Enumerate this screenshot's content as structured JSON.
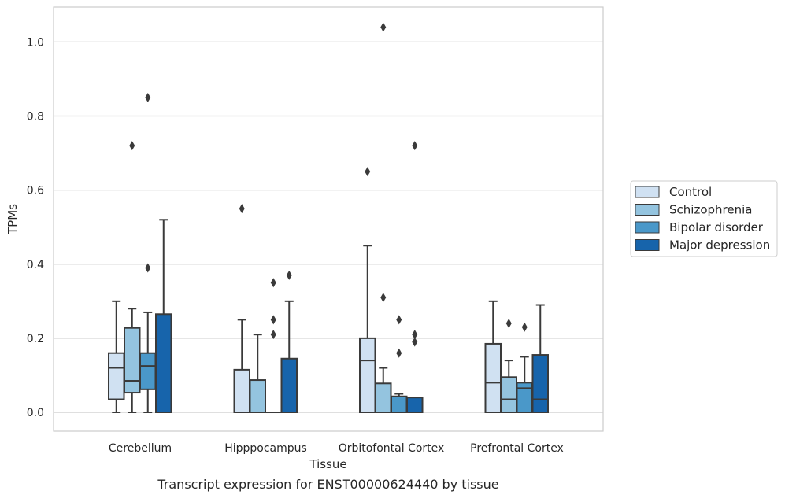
{
  "caption": "Transcript expression for ENST00000624440 by tissue",
  "chart_data": {
    "type": "box",
    "title": "",
    "xlabel": "Tissue",
    "ylabel": "TPMs",
    "ylim": [
      -0.05,
      1.09
    ],
    "yticks": [
      0.0,
      0.2,
      0.4,
      0.6,
      0.8,
      1.0
    ],
    "ytick_labels": [
      "0.0",
      "0.2",
      "0.4",
      "0.6",
      "0.8",
      "1.0"
    ],
    "grid": "horizontal",
    "legend_position": "right",
    "categories": [
      "Cerebellum",
      "Hipppocampus",
      "Orbitofontal Cortex",
      "Prefrontal Cortex"
    ],
    "series": [
      {
        "name": "Control",
        "color": "#d0e1f2",
        "boxes": [
          {
            "whislo": 0.0,
            "q1": 0.035,
            "med": 0.12,
            "q3": 0.16,
            "whishi": 0.3,
            "fliers": []
          },
          {
            "whislo": 0.0,
            "q1": 0.0,
            "med": 0.0,
            "q3": 0.115,
            "whishi": 0.25,
            "fliers": [
              0.55
            ]
          },
          {
            "whislo": 0.0,
            "q1": 0.0,
            "med": 0.14,
            "q3": 0.2,
            "whishi": 0.45,
            "fliers": [
              0.65
            ]
          },
          {
            "whislo": 0.0,
            "q1": 0.0,
            "med": 0.08,
            "q3": 0.185,
            "whishi": 0.3,
            "fliers": []
          }
        ]
      },
      {
        "name": "Schizophrenia",
        "color": "#94c4df",
        "boxes": [
          {
            "whislo": 0.0,
            "q1": 0.053,
            "med": 0.085,
            "q3": 0.228,
            "whishi": 0.28,
            "fliers": [
              0.72
            ]
          },
          {
            "whislo": 0.0,
            "q1": 0.0,
            "med": 0.0,
            "q3": 0.087,
            "whishi": 0.21,
            "fliers": []
          },
          {
            "whislo": 0.0,
            "q1": 0.0,
            "med": 0.0,
            "q3": 0.078,
            "whishi": 0.12,
            "fliers": [
              0.31,
              1.04
            ]
          },
          {
            "whislo": 0.0,
            "q1": 0.0,
            "med": 0.035,
            "q3": 0.095,
            "whishi": 0.14,
            "fliers": [
              0.24
            ]
          }
        ]
      },
      {
        "name": "Bipolar disorder",
        "color": "#4a98c9",
        "boxes": [
          {
            "whislo": 0.0,
            "q1": 0.062,
            "med": 0.125,
            "q3": 0.16,
            "whishi": 0.27,
            "fliers": [
              0.39,
              0.85
            ]
          },
          {
            "whislo": 0.0,
            "q1": 0.0,
            "med": 0.0,
            "q3": 0.0,
            "whishi": 0.0,
            "fliers": [
              0.21,
              0.25,
              0.35
            ]
          },
          {
            "whislo": 0.0,
            "q1": 0.0,
            "med": 0.0,
            "q3": 0.043,
            "whishi": 0.05,
            "fliers": [
              0.16,
              0.25
            ]
          },
          {
            "whislo": 0.0,
            "q1": 0.0,
            "med": 0.065,
            "q3": 0.08,
            "whishi": 0.15,
            "fliers": [
              0.23
            ]
          }
        ]
      },
      {
        "name": "Major depression",
        "color": "#1764ab",
        "boxes": [
          {
            "whislo": 0.0,
            "q1": 0.0,
            "med": 0.0,
            "q3": 0.265,
            "whishi": 0.52,
            "fliers": []
          },
          {
            "whislo": 0.0,
            "q1": 0.0,
            "med": 0.0,
            "q3": 0.145,
            "whishi": 0.3,
            "fliers": [
              0.37
            ]
          },
          {
            "whislo": 0.0,
            "q1": 0.0,
            "med": 0.0,
            "q3": 0.04,
            "whishi": 0.04,
            "fliers": [
              0.19,
              0.21,
              0.72
            ]
          },
          {
            "whislo": 0.0,
            "q1": 0.0,
            "med": 0.035,
            "q3": 0.155,
            "whishi": 0.29,
            "fliers": []
          }
        ]
      }
    ]
  }
}
